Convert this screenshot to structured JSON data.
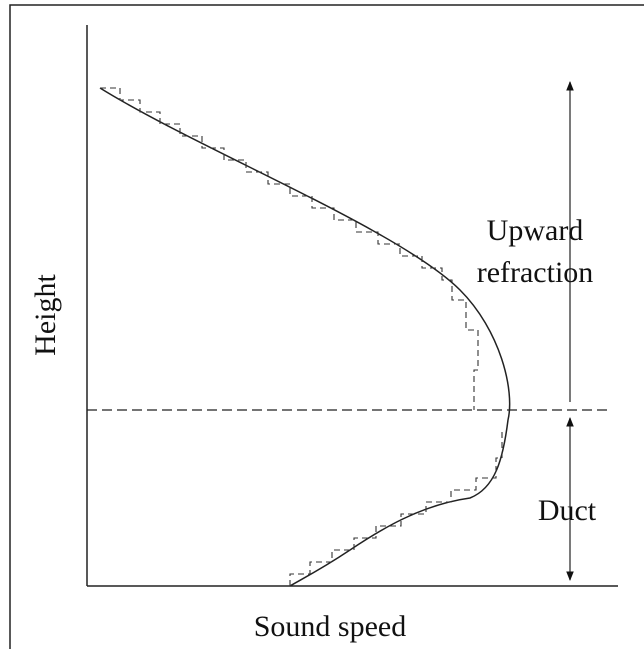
{
  "labels": {
    "y_axis": "Height",
    "x_axis": "Sound speed",
    "upper_region": [
      "Upward",
      "refraction"
    ],
    "lower_region": "Duct"
  }
}
